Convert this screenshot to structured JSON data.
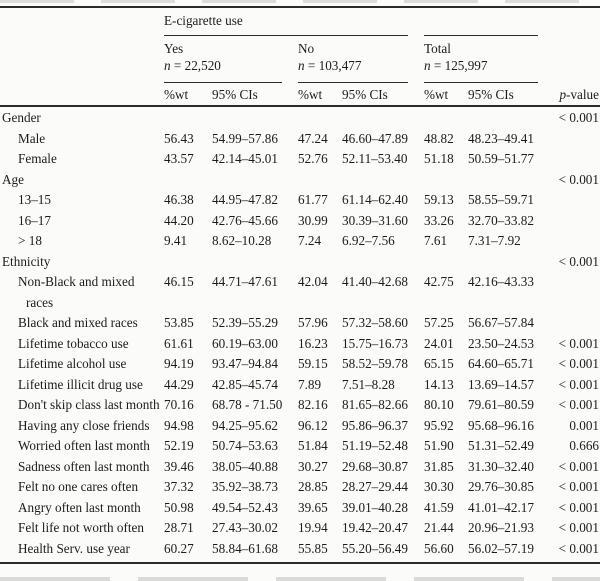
{
  "table": {
    "span_header": "E-cigarette use",
    "groups": [
      {
        "label": "Yes",
        "n_label": "n",
        "n_rest": " = 22,520"
      },
      {
        "label": "No",
        "n_label": "n",
        "n_rest": " = 103,477"
      },
      {
        "label": "Total",
        "n_label": "n",
        "n_rest": " = 125,997"
      }
    ],
    "col_headers": {
      "pct": "%wt",
      "ci": "95% CIs",
      "p_label": "p",
      "p_rest": "-value"
    },
    "rows": [
      {
        "label": "Gender",
        "type": "group",
        "cells": [
          "",
          "",
          "",
          "",
          "",
          ""
        ],
        "p": "< 0.001"
      },
      {
        "label": "Male",
        "type": "item",
        "cells": [
          "56.43",
          "54.99–57.86",
          "47.24",
          "46.60–47.89",
          "48.82",
          "48.23–49.41"
        ],
        "p": ""
      },
      {
        "label": "Female",
        "type": "item",
        "cells": [
          "43.57",
          "42.14–45.01",
          "52.76",
          "52.11–53.40",
          "51.18",
          "50.59–51.77"
        ],
        "p": ""
      },
      {
        "label": "Age",
        "type": "group",
        "cells": [
          "",
          "",
          "",
          "",
          "",
          ""
        ],
        "p": "< 0.001"
      },
      {
        "label": "13–15",
        "type": "item",
        "cells": [
          "46.38",
          "44.95–47.82",
          "61.77",
          "61.14–62.40",
          "59.13",
          "58.55–59.71"
        ],
        "p": ""
      },
      {
        "label": "16–17",
        "type": "item",
        "cells": [
          "44.20",
          "42.76–45.66",
          "30.99",
          "30.39–31.60",
          "33.26",
          "32.70–33.82"
        ],
        "p": ""
      },
      {
        "label": "> 18",
        "type": "item",
        "cells": [
          "9.41",
          "8.62–10.28",
          "7.24",
          "6.92–7.56",
          "7.61",
          "7.31–7.92"
        ],
        "p": ""
      },
      {
        "label": "Ethnicity",
        "type": "group",
        "cells": [
          "",
          "",
          "",
          "",
          "",
          ""
        ],
        "p": "< 0.001"
      },
      {
        "label": "Non-Black and mixed races",
        "type": "item",
        "cells": [
          "46.15",
          "44.71–47.61",
          "42.04",
          "41.40–42.68",
          "42.75",
          "42.16–43.33"
        ],
        "p": ""
      },
      {
        "label": "Black and mixed races",
        "type": "item",
        "cells": [
          "53.85",
          "52.39–55.29",
          "57.96",
          "57.32–58.60",
          "57.25",
          "56.67–57.84"
        ],
        "p": ""
      },
      {
        "label": "Lifetime tobacco use",
        "type": "item",
        "cells": [
          "61.61",
          "60.19–63.00",
          "16.23",
          "15.75–16.73",
          "24.01",
          "23.50–24.53"
        ],
        "p": "< 0.001"
      },
      {
        "label": "Lifetime alcohol use",
        "type": "item",
        "cells": [
          "94.19",
          "93.47–94.84",
          "59.15",
          "58.52–59.78",
          "65.15",
          "64.60–65.71"
        ],
        "p": "< 0.001"
      },
      {
        "label": "Lifetime illicit drug use",
        "type": "item",
        "cells": [
          "44.29",
          "42.85–45.74",
          "7.89",
          "7.51–8.28",
          "14.13",
          "13.69–14.57"
        ],
        "p": "< 0.001"
      },
      {
        "label": "Don't skip class last month",
        "type": "item",
        "cells": [
          "70.16",
          "68.78 - 71.50",
          "82.16",
          "81.65–82.66",
          "80.10",
          "79.61–80.59"
        ],
        "p": "< 0.001"
      },
      {
        "label": "Having any close friends",
        "type": "item",
        "cells": [
          "94.98",
          "94.25–95.62",
          "96.12",
          "95.86–96.37",
          "95.92",
          "95.68–96.16"
        ],
        "p": "0.001"
      },
      {
        "label": "Worried often last month",
        "type": "item",
        "cells": [
          "52.19",
          "50.74–53.63",
          "51.84",
          "51.19–52.48",
          "51.90",
          "51.31–52.49"
        ],
        "p": "0.666"
      },
      {
        "label": "Sadness often last month",
        "type": "item",
        "cells": [
          "39.46",
          "38.05–40.88",
          "30.27",
          "29.68–30.87",
          "31.85",
          "31.30–32.40"
        ],
        "p": "< 0.001"
      },
      {
        "label": "Felt no one cares often",
        "type": "item",
        "cells": [
          "37.32",
          "35.92–38.73",
          "28.85",
          "28.27–29.44",
          "30.30",
          "29.76–30.85"
        ],
        "p": "< 0.001"
      },
      {
        "label": "Angry often last month",
        "type": "item",
        "cells": [
          "50.98",
          "49.54–52.43",
          "39.65",
          "39.01–40.28",
          "41.59",
          "41.01–42.17"
        ],
        "p": "< 0.001"
      },
      {
        "label": "Felt life not worth often",
        "type": "item",
        "cells": [
          "28.71",
          "27.43–30.02",
          "19.94",
          "19.42–20.47",
          "21.44",
          "20.96–21.93"
        ],
        "p": "< 0.001"
      },
      {
        "label": "Health Serv. use year",
        "type": "item",
        "cells": [
          "60.27",
          "58.84–61.68",
          "55.85",
          "55.20–56.49",
          "56.60",
          "56.02–57.19"
        ],
        "p": "< 0.001"
      }
    ]
  }
}
